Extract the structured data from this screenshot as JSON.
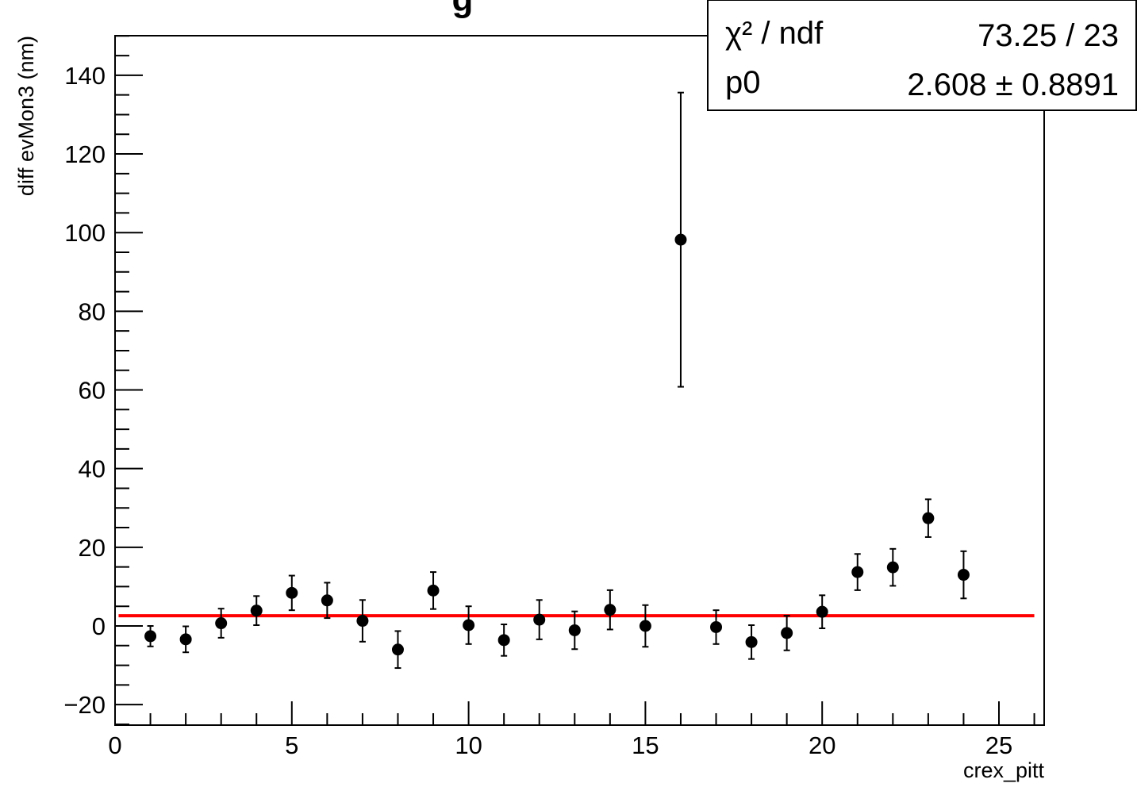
{
  "chart_data": {
    "type": "scatter",
    "title": "g",
    "xlabel": "crex_pitt",
    "ylabel": "diff evMon3 (nm)",
    "xlim": [
      0,
      26.3
    ],
    "ylim": [
      -25,
      150
    ],
    "x_ticks": [
      0,
      5,
      10,
      15,
      20,
      25
    ],
    "x_tick_labels": [
      "0",
      "5",
      "10",
      "15",
      "20",
      "25"
    ],
    "y_ticks": [
      -20,
      0,
      20,
      40,
      60,
      80,
      100,
      120,
      140
    ],
    "y_tick_labels": [
      "−20",
      "0",
      "20",
      "40",
      "60",
      "80",
      "100",
      "120",
      "140"
    ],
    "grid": false,
    "series": [
      {
        "marker": "filled-circle",
        "color": "#000000",
        "x": [
          1,
          2,
          3,
          4,
          5,
          6,
          7,
          8,
          9,
          10,
          11,
          12,
          13,
          14,
          15,
          16,
          17,
          18,
          19,
          20,
          21,
          22,
          23,
          24
        ],
        "y": [
          -2.6,
          -3.4,
          0.7,
          3.9,
          8.4,
          6.5,
          1.3,
          -6.0,
          9.0,
          0.2,
          -3.6,
          1.6,
          -1.1,
          4.1,
          0.0,
          98.2,
          -0.3,
          -4.1,
          -1.8,
          3.6,
          13.7,
          14.9,
          27.4,
          13.0
        ],
        "yerr": [
          2.6,
          3.3,
          3.7,
          3.7,
          4.4,
          4.5,
          5.3,
          4.7,
          4.7,
          4.8,
          4.0,
          5.0,
          4.8,
          5.0,
          5.3,
          37.4,
          4.3,
          4.3,
          4.4,
          4.2,
          4.6,
          4.7,
          4.8,
          6.0
        ]
      }
    ],
    "fit": {
      "type": "constant",
      "value": 2.608,
      "color": "#ff0000",
      "x_range": [
        0.1,
        26.0
      ]
    },
    "stats_box": {
      "position": "top-right",
      "rows": [
        {
          "label": "χ² / ndf",
          "value": "73.25 / 23"
        },
        {
          "label": "p0",
          "value": "2.608 ± 0.8891"
        }
      ]
    }
  }
}
